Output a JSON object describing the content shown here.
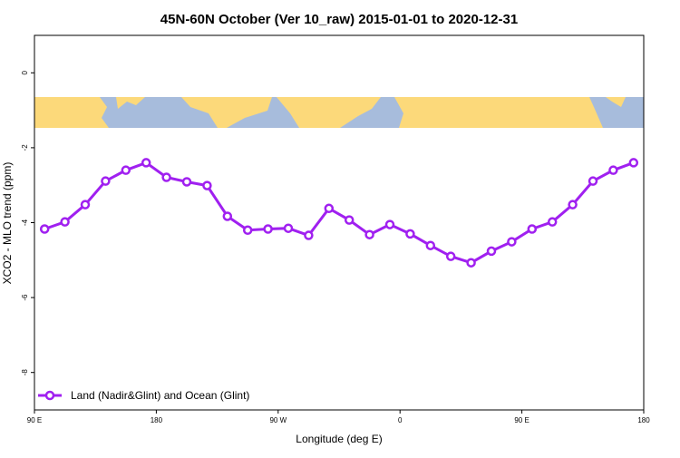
{
  "chart_data": {
    "type": "line",
    "title": "45N-60N October (Ver 10_raw)   2015-01-01 to 2020-12-31",
    "x_label": "Longitude (deg E)",
    "y_label": "XCO2 - MLO trend (ppm)",
    "x": [
      97.5,
      112.5,
      127.5,
      142.5,
      157.5,
      172.5,
      187.5,
      202.5,
      217.5,
      232.5,
      247.5,
      262.5,
      277.5,
      292.5,
      307.5,
      322.5,
      337.5,
      352.5,
      367.5,
      382.5,
      397.5,
      412.5,
      427.5,
      442.5,
      457.5,
      472.5,
      487.5,
      502.5,
      517.5,
      532.5
    ],
    "series": [
      {
        "name": "Land (Nadir&Glint) and Ocean (Glint)",
        "color": "#a020f0",
        "values": [
          -4.17,
          -3.98,
          -3.52,
          -2.89,
          -2.6,
          -2.4,
          -2.79,
          -2.91,
          -3.01,
          -3.83,
          -4.2,
          -4.17,
          -4.15,
          -4.34,
          -3.62,
          -3.93,
          -4.32,
          -4.05,
          -4.3,
          -4.61,
          -4.9,
          -5.07,
          -4.76,
          -4.51,
          -4.17,
          -3.98,
          -3.52,
          -2.89,
          -2.6,
          -2.4
        ]
      }
    ],
    "xlim": [
      90,
      540
    ],
    "xticks": [
      {
        "value": 90,
        "label": "90 E"
      },
      {
        "value": 180,
        "label": "180"
      },
      {
        "value": 270,
        "label": "90 W"
      },
      {
        "value": 360,
        "label": "0"
      },
      {
        "value": 450,
        "label": "90 E"
      },
      {
        "value": 540,
        "label": "180"
      }
    ],
    "ylim": [
      -9,
      1
    ],
    "yticks": [
      0,
      -2,
      -4,
      -6,
      -8
    ],
    "legend": "bottom-left"
  }
}
